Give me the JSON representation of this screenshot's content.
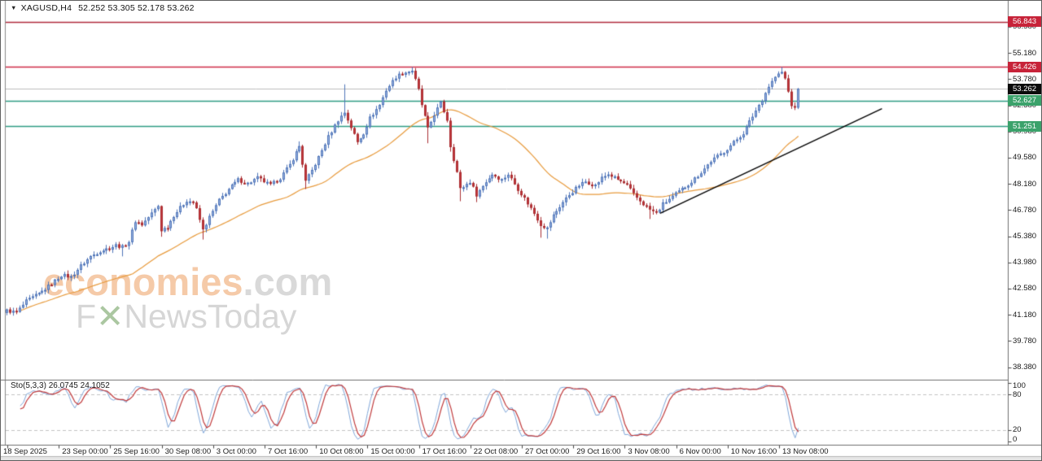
{
  "window": {
    "dropdown_icon": "▼",
    "title_symbol": "XAGUSD,H4",
    "title_ohlc": "52.252 53.305 52.178 53.262"
  },
  "watermark": {
    "brand": "economies",
    "domain": ".com",
    "tagline_prefix": "F",
    "tagline_x": "✕",
    "tagline_rest": "NewsToday"
  },
  "price_axis": {
    "ticks": [
      "56.580",
      "55.180",
      "53.780",
      "52.380",
      "50.980",
      "49.580",
      "48.180",
      "46.780",
      "45.380",
      "43.980",
      "42.580",
      "41.180",
      "39.780",
      "38.380"
    ],
    "badges": [
      {
        "value": "56.843",
        "kind": "resistance"
      },
      {
        "value": "54.426",
        "kind": "resistance"
      },
      {
        "value": "53.262",
        "kind": "last-price"
      },
      {
        "value": "52.627",
        "kind": "support"
      },
      {
        "value": "51.251",
        "kind": "support"
      }
    ],
    "badge_colors": {
      "resistance": "#C72339",
      "support": "#3BA26B",
      "last-price": "#0B0B0B"
    }
  },
  "date_axis": {
    "labels": [
      {
        "bar": 0,
        "label": "18 Sep 2025"
      },
      {
        "bar": 16,
        "label": "23 Sep 00:00"
      },
      {
        "bar": 32,
        "label": "25 Sep 16:00"
      },
      {
        "bar": 48,
        "label": "30 Sep 08:00"
      },
      {
        "bar": 64,
        "label": "3 Oct 00:00"
      },
      {
        "bar": 80,
        "label": "7 Oct 16:00"
      },
      {
        "bar": 96,
        "label": "10 Oct 08:00"
      },
      {
        "bar": 112,
        "label": "15 Oct 00:00"
      },
      {
        "bar": 128,
        "label": "17 Oct 16:00"
      },
      {
        "bar": 144,
        "label": "22 Oct 08:00"
      },
      {
        "bar": 160,
        "label": "27 Oct 00:00"
      },
      {
        "bar": 176,
        "label": "29 Oct 16:00"
      },
      {
        "bar": 192,
        "label": "3 Nov 08:00"
      },
      {
        "bar": 208,
        "label": "6 Nov 00:00"
      },
      {
        "bar": 224,
        "label": "10 Nov 16:00"
      },
      {
        "bar": 240,
        "label": "13 Nov 08:00"
      }
    ]
  },
  "chart_data": {
    "type": "candlestick",
    "symbol": "XAGUSD",
    "timeframe": "H4",
    "visible_bars": 247,
    "ylim": [
      38.38,
      57.0
    ],
    "grid": false,
    "close_waypoints": [
      [
        0,
        41.4
      ],
      [
        3,
        41.3
      ],
      [
        6,
        41.9
      ],
      [
        10,
        42.3
      ],
      [
        13,
        42.7
      ],
      [
        17,
        43.3
      ],
      [
        20,
        43.2
      ],
      [
        23,
        43.8
      ],
      [
        26,
        44.3
      ],
      [
        29,
        44.6
      ],
      [
        32,
        44.75
      ],
      [
        34,
        44.9
      ],
      [
        36,
        44.8
      ],
      [
        38,
        45.1
      ],
      [
        40,
        46.2
      ],
      [
        42,
        46.0
      ],
      [
        44,
        46.4
      ],
      [
        46,
        46.8
      ],
      [
        47,
        47.0
      ],
      [
        48,
        45.7
      ],
      [
        50,
        45.9
      ],
      [
        52,
        46.5
      ],
      [
        54,
        46.9
      ],
      [
        56,
        47.3
      ],
      [
        58,
        47.2
      ],
      [
        59,
        46.8
      ],
      [
        61,
        45.7
      ],
      [
        63,
        46.4
      ],
      [
        66,
        47.3
      ],
      [
        69,
        47.9
      ],
      [
        72,
        48.4
      ],
      [
        75,
        48.2
      ],
      [
        78,
        48.5
      ],
      [
        80,
        48.3
      ],
      [
        82,
        48.1
      ],
      [
        85,
        48.5
      ],
      [
        88,
        49.2
      ],
      [
        91,
        50.2
      ],
      [
        93,
        48.3
      ],
      [
        95,
        48.9
      ],
      [
        97,
        49.6
      ],
      [
        100,
        50.7
      ],
      [
        103,
        51.6
      ],
      [
        105,
        52.0
      ],
      [
        107,
        51.2
      ],
      [
        109,
        50.4
      ],
      [
        111,
        50.9
      ],
      [
        113,
        51.7
      ],
      [
        116,
        52.4
      ],
      [
        118,
        53.2
      ],
      [
        121,
        53.9
      ],
      [
        123,
        54.1
      ],
      [
        126,
        54.25
      ],
      [
        128,
        53.2
      ],
      [
        129,
        52.4
      ],
      [
        131,
        51.1
      ],
      [
        133,
        51.9
      ],
      [
        135,
        52.5
      ],
      [
        137,
        51.6
      ],
      [
        138,
        50.2
      ],
      [
        140,
        48.8
      ],
      [
        141,
        47.9
      ],
      [
        144,
        48.3
      ],
      [
        146,
        47.6
      ],
      [
        149,
        48.3
      ],
      [
        151,
        48.7
      ],
      [
        154,
        48.4
      ],
      [
        156,
        48.7
      ],
      [
        159,
        47.9
      ],
      [
        161,
        47.4
      ],
      [
        164,
        46.6
      ],
      [
        166,
        46.0
      ],
      [
        168,
        45.8
      ],
      [
        170,
        46.5
      ],
      [
        173,
        47.2
      ],
      [
        175,
        47.6
      ],
      [
        178,
        48.1
      ],
      [
        180,
        48.3
      ],
      [
        183,
        48.1
      ],
      [
        185,
        48.5
      ],
      [
        187,
        48.7
      ],
      [
        190,
        48.4
      ],
      [
        193,
        48.1
      ],
      [
        195,
        47.6
      ],
      [
        198,
        47.1
      ],
      [
        200,
        46.8
      ],
      [
        202,
        46.6
      ],
      [
        204,
        47.1
      ],
      [
        207,
        47.5
      ],
      [
        210,
        47.9
      ],
      [
        213,
        48.3
      ],
      [
        216,
        48.8
      ],
      [
        219,
        49.4
      ],
      [
        223,
        49.9
      ],
      [
        226,
        50.4
      ],
      [
        229,
        50.9
      ],
      [
        232,
        51.8
      ],
      [
        235,
        52.7
      ],
      [
        237,
        53.4
      ],
      [
        239,
        53.9
      ],
      [
        241,
        54.15
      ],
      [
        242,
        53.8
      ],
      [
        243,
        53.1
      ],
      [
        244,
        52.4
      ],
      [
        245,
        52.2
      ],
      [
        246,
        53.262
      ]
    ],
    "spike_wicks": [
      {
        "bar": 36,
        "low": 44.3
      },
      {
        "bar": 48,
        "low": 45.35
      },
      {
        "bar": 61,
        "low": 45.2
      },
      {
        "bar": 91,
        "high": 50.45
      },
      {
        "bar": 93,
        "low": 47.9
      },
      {
        "bar": 105,
        "high": 53.5
      },
      {
        "bar": 126,
        "high": 54.426
      },
      {
        "bar": 131,
        "low": 50.35
      },
      {
        "bar": 138,
        "low": 49.9
      },
      {
        "bar": 141,
        "low": 47.25
      },
      {
        "bar": 146,
        "low": 47.2
      },
      {
        "bar": 166,
        "low": 45.3
      },
      {
        "bar": 168,
        "low": 45.25
      },
      {
        "bar": 200,
        "low": 46.3
      },
      {
        "bar": 241,
        "high": 54.426
      }
    ],
    "last_candle": {
      "open": 52.252,
      "high": 53.305,
      "low": 52.178,
      "close": 53.262
    },
    "high_max": 54.426,
    "candle_colors": {
      "bull_fill": "#9FB6E2",
      "bull_border": "#4E74B8",
      "bear_fill": "#C4393D",
      "bear_border": "#A82C30"
    },
    "moving_average": {
      "period": 40,
      "color": "#E79A3C"
    },
    "trendline": {
      "from_bar": 203,
      "from_price": 46.6,
      "to_bar": 272,
      "to_price": 52.2,
      "color": "#000000"
    },
    "levels": [
      {
        "price": 56.843,
        "color": "#B12A3C"
      },
      {
        "price": 54.426,
        "color": "#CE2B45"
      },
      {
        "price": 53.262,
        "color": "#BCBCBC"
      },
      {
        "price": 52.627,
        "color": "#2E9B84"
      },
      {
        "price": 51.251,
        "color": "#2E9B84"
      }
    ],
    "stochastic": {
      "name": "Sto(5,3,3)",
      "values_text": "26.0745 24.1052",
      "k_period": 5,
      "slowing": 3,
      "d_period": 3,
      "main_value": 26.0745,
      "signal_value": 24.1052,
      "levels": [
        80,
        20
      ],
      "scale": [
        "100",
        "80",
        "20",
        "0"
      ],
      "main_color": "#7FA6D8",
      "signal_color": "#C03A3C"
    }
  }
}
